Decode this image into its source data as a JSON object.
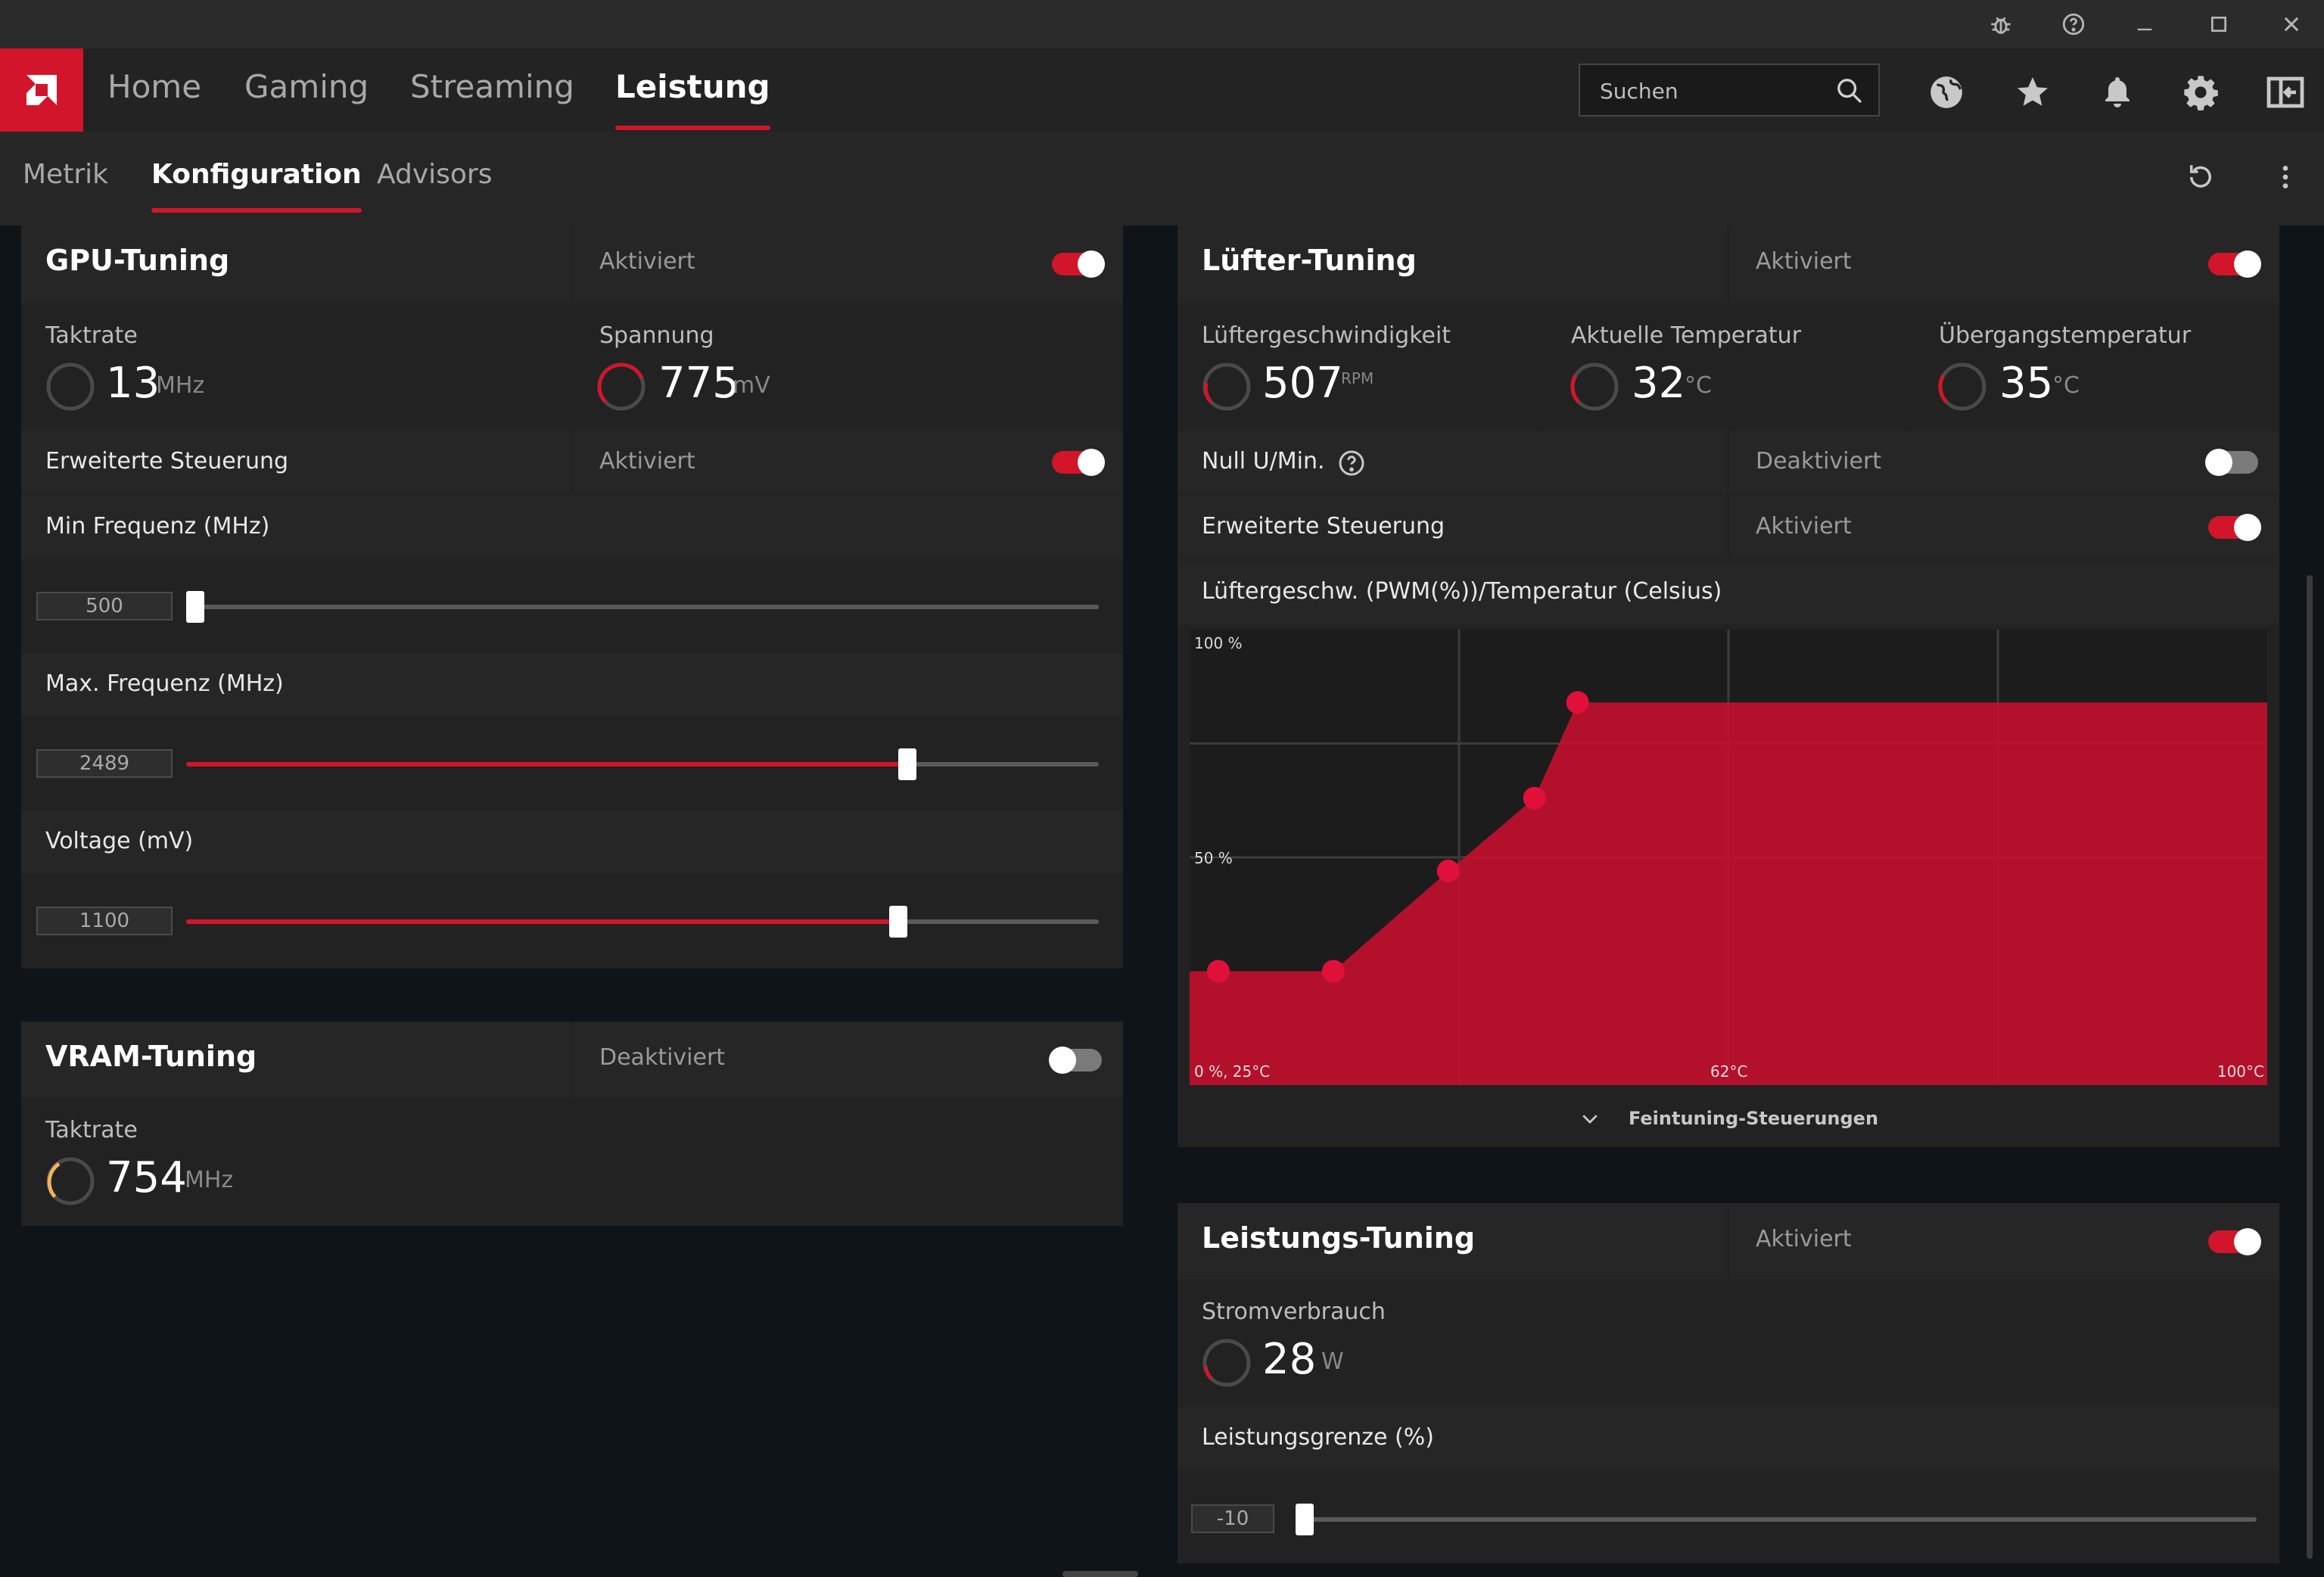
{
  "titlebar": {
    "icons": [
      "bug-icon",
      "help-icon",
      "minimize-icon",
      "maximize-icon",
      "close-icon"
    ]
  },
  "nav": {
    "tabs": [
      {
        "label": "Home",
        "active": false
      },
      {
        "label": "Gaming",
        "active": false
      },
      {
        "label": "Streaming",
        "active": false
      },
      {
        "label": "Leistung",
        "active": true
      }
    ],
    "search_placeholder": "Suchen",
    "icons": [
      "globe-icon",
      "star-icon",
      "bell-icon",
      "gear-icon",
      "sidebar-icon"
    ]
  },
  "subnav": {
    "tabs": [
      {
        "label": "Metrik",
        "active": false
      },
      {
        "label": "Konfiguration",
        "active": true
      },
      {
        "label": "Advisors",
        "active": false
      }
    ]
  },
  "gpu": {
    "title": "GPU-Tuning",
    "state": "Aktiviert",
    "enabled": true,
    "clock_label": "Taktrate",
    "clock_value": "13",
    "clock_unit": "MHz",
    "voltage_label": "Spannung",
    "voltage_value": "775",
    "voltage_unit": "mV",
    "advanced_label": "Erweiterte Steuerung",
    "advanced_state": "Aktiviert",
    "min_freq_label": "Min Frequenz (MHz)",
    "min_freq_value": "500",
    "min_freq_fraction": 0.01,
    "max_freq_label": "Max. Frequenz (MHz)",
    "max_freq_value": "2489",
    "max_freq_fraction": 0.79,
    "voltage_slider_label": "Voltage (mV)",
    "voltage_slider_value": "1100",
    "voltage_slider_fraction": 0.78
  },
  "vram": {
    "title": "VRAM-Tuning",
    "state": "Deaktiviert",
    "enabled": false,
    "clock_label": "Taktrate",
    "clock_value": "754",
    "clock_unit": "MHz"
  },
  "fan": {
    "title": "Lüfter-Tuning",
    "state": "Aktiviert",
    "enabled": true,
    "speed_label": "Lüftergeschwindigkeit",
    "speed_value": "507",
    "speed_unit": "RPM",
    "temp_label": "Aktuelle Temperatur",
    "temp_value": "32",
    "temp_unit": "°C",
    "junction_label": "Übergangstemperatur",
    "junction_value": "35",
    "junction_unit": "°C",
    "zero_rpm_label": "Null U/Min.",
    "zero_rpm_state": "Deaktiviert",
    "advanced_label": "Erweiterte Steuerung",
    "advanced_state": "Aktiviert",
    "curve_label": "Lüftergeschw. (PWM(%))/Temperatur (Celsius)",
    "fine_tuning_label": "Feintuning-Steuerungen"
  },
  "chart_data": {
    "type": "area",
    "xlabel": "",
    "ylabel": "",
    "y_tick_labels": [
      "100 %",
      "50 %"
    ],
    "x_tick_labels": [
      "0 %, 25°C",
      "62°C",
      "100°C"
    ],
    "xlim": [
      25,
      100
    ],
    "ylim": [
      0,
      100
    ],
    "grid": true,
    "series": [
      {
        "x": [
          27,
          35,
          43,
          49,
          52
        ],
        "y": [
          25,
          25,
          47,
          63,
          84
        ]
      }
    ],
    "color": "#c8102e"
  },
  "power": {
    "title": "Leistungs-Tuning",
    "state": "Aktiviert",
    "enabled": true,
    "consumption_label": "Stromverbrauch",
    "consumption_value": "28",
    "consumption_unit": "W",
    "limit_label": "Leistungsgrenze (%)",
    "limit_value": "-10",
    "limit_fraction": 0.0
  }
}
